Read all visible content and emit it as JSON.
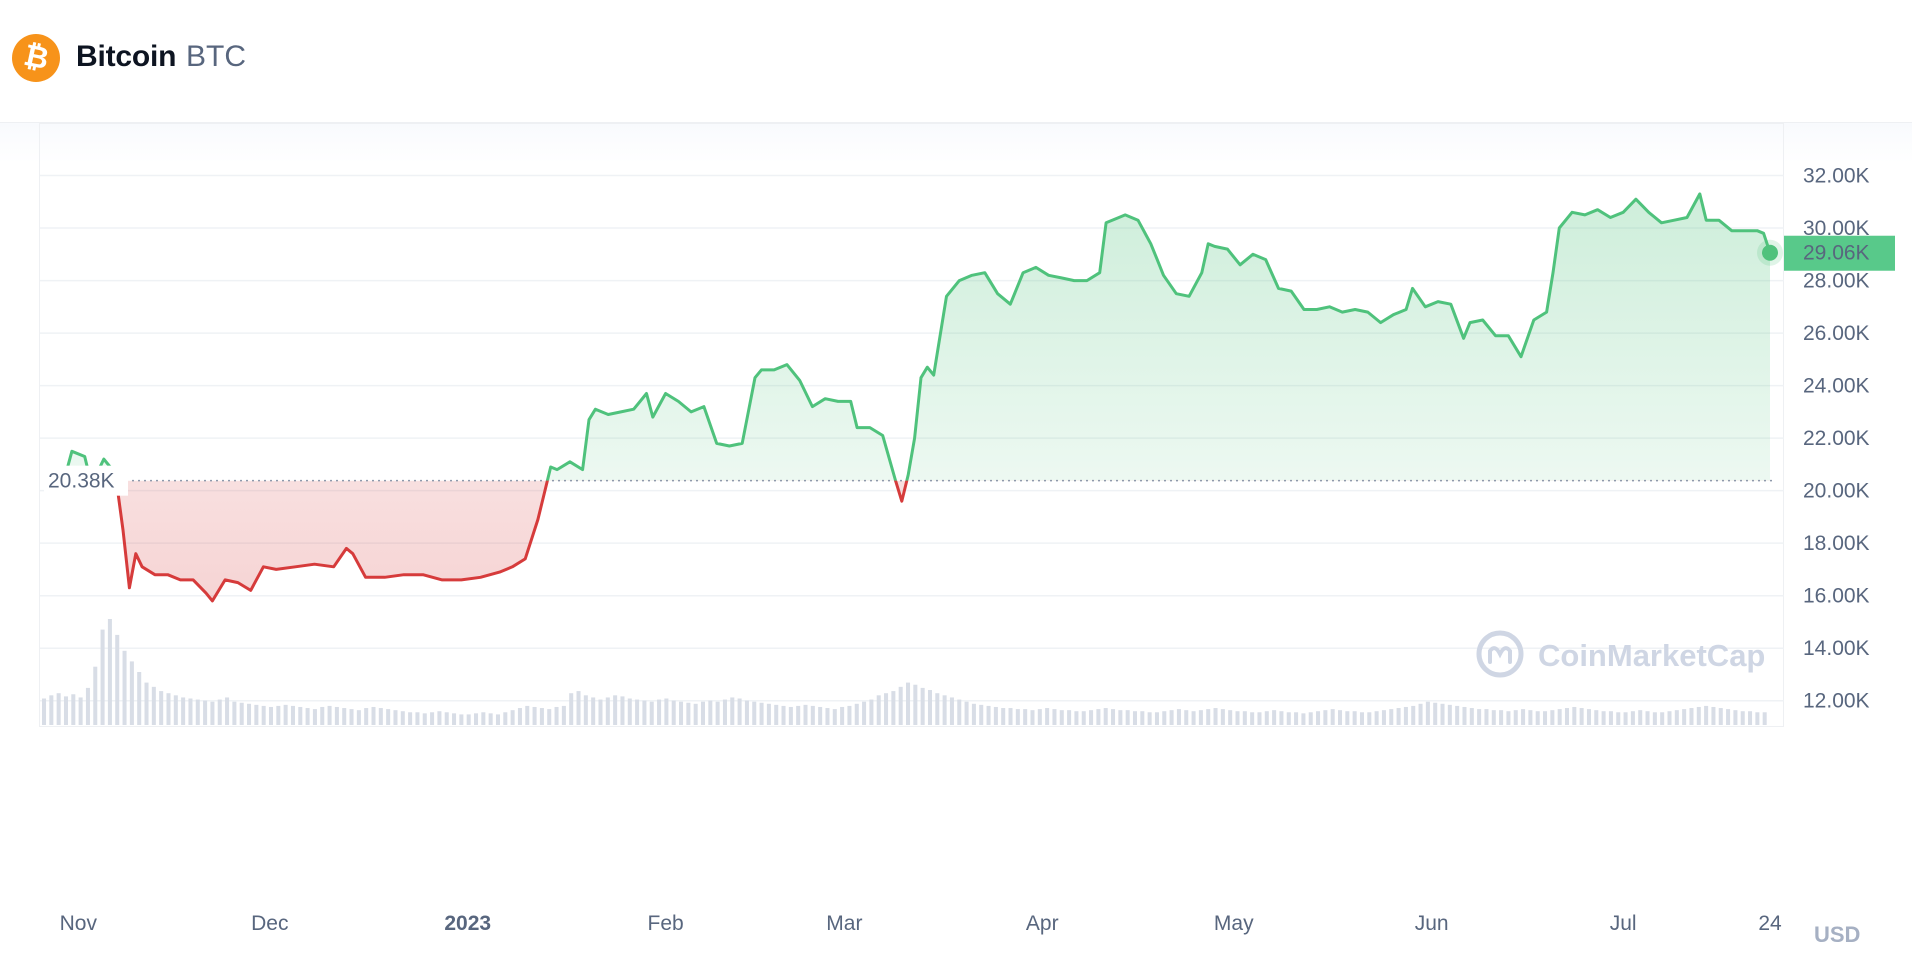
{
  "header": {
    "coin_name": "Bitcoin",
    "coin_symbol": "BTC",
    "logo_icon": "bitcoin-icon",
    "logo_glyph": "₿"
  },
  "watermark": {
    "text": "CoinMarketCap",
    "icon": "coinmarketcap-logo-icon"
  },
  "colors": {
    "up": "#16c784",
    "up_line": "#4fc27c",
    "down": "#d63b3b",
    "badge": "#58c98a",
    "grid": "#eff2f5",
    "volume": "#cfd6e4"
  },
  "chart_data": {
    "type": "area",
    "title": "",
    "currency_label": "USD",
    "ylim": [
      11000,
      34000
    ],
    "y_ticks": [
      12000,
      14000,
      16000,
      18000,
      20000,
      22000,
      24000,
      26000,
      28000,
      30000,
      32000
    ],
    "y_tick_labels": [
      "12.00K",
      "14.00K",
      "16.00K",
      "18.00K",
      "20.00K",
      "22.00K",
      "24.00K",
      "26.00K",
      "28.00K",
      "30.00K",
      "32.00K"
    ],
    "x_range": [
      "2022-10-26",
      "2023-07-24"
    ],
    "x_ticks": [
      {
        "date": "2022-11-01",
        "label": "Nov",
        "bold": false
      },
      {
        "date": "2022-12-01",
        "label": "Dec",
        "bold": false
      },
      {
        "date": "2023-01-01",
        "label": "2023",
        "bold": true
      },
      {
        "date": "2023-02-01",
        "label": "Feb",
        "bold": false
      },
      {
        "date": "2023-03-01",
        "label": "Mar",
        "bold": false
      },
      {
        "date": "2023-04-01",
        "label": "Apr",
        "bold": false
      },
      {
        "date": "2023-05-01",
        "label": "May",
        "bold": false
      },
      {
        "date": "2023-06-01",
        "label": "Jun",
        "bold": false
      },
      {
        "date": "2023-07-01",
        "label": "Jul",
        "bold": false
      },
      {
        "date": "2023-07-24",
        "label": "24",
        "bold": false
      }
    ],
    "baseline": {
      "value": 20380,
      "label": "20.38K"
    },
    "current": {
      "value": 29060,
      "label": "29.06K"
    },
    "series": [
      {
        "points": [
          [
            "2022-10-30",
            20600
          ],
          [
            "2022-10-31",
            21500
          ],
          [
            "2022-11-02",
            21300
          ],
          [
            "2022-11-03",
            20300
          ],
          [
            "2022-11-04",
            20700
          ],
          [
            "2022-11-05",
            21200
          ],
          [
            "2022-11-06",
            20900
          ],
          [
            "2022-11-07",
            20300
          ],
          [
            "2022-11-08",
            18500
          ],
          [
            "2022-11-09",
            16300
          ],
          [
            "2022-11-10",
            17600
          ],
          [
            "2022-11-11",
            17100
          ],
          [
            "2022-11-13",
            16800
          ],
          [
            "2022-11-15",
            16800
          ],
          [
            "2022-11-17",
            16600
          ],
          [
            "2022-11-19",
            16600
          ],
          [
            "2022-11-21",
            16100
          ],
          [
            "2022-11-22",
            15800
          ],
          [
            "2022-11-24",
            16600
          ],
          [
            "2022-11-26",
            16500
          ],
          [
            "2022-11-28",
            16200
          ],
          [
            "2022-11-30",
            17100
          ],
          [
            "2022-12-02",
            17000
          ],
          [
            "2022-12-05",
            17100
          ],
          [
            "2022-12-08",
            17200
          ],
          [
            "2022-12-11",
            17100
          ],
          [
            "2022-12-13",
            17800
          ],
          [
            "2022-12-14",
            17600
          ],
          [
            "2022-12-16",
            16700
          ],
          [
            "2022-12-19",
            16700
          ],
          [
            "2022-12-22",
            16800
          ],
          [
            "2022-12-25",
            16800
          ],
          [
            "2022-12-28",
            16600
          ],
          [
            "2022-12-31",
            16600
          ],
          [
            "2023-01-03",
            16700
          ],
          [
            "2023-01-06",
            16900
          ],
          [
            "2023-01-08",
            17100
          ],
          [
            "2023-01-10",
            17400
          ],
          [
            "2023-01-12",
            18900
          ],
          [
            "2023-01-13",
            19900
          ],
          [
            "2023-01-14",
            20900
          ],
          [
            "2023-01-15",
            20800
          ],
          [
            "2023-01-17",
            21100
          ],
          [
            "2023-01-19",
            20800
          ],
          [
            "2023-01-20",
            22700
          ],
          [
            "2023-01-21",
            23100
          ],
          [
            "2023-01-23",
            22900
          ],
          [
            "2023-01-25",
            23000
          ],
          [
            "2023-01-27",
            23100
          ],
          [
            "2023-01-29",
            23700
          ],
          [
            "2023-01-30",
            22800
          ],
          [
            "2023-02-01",
            23700
          ],
          [
            "2023-02-03",
            23400
          ],
          [
            "2023-02-05",
            23000
          ],
          [
            "2023-02-07",
            23200
          ],
          [
            "2023-02-09",
            21800
          ],
          [
            "2023-02-11",
            21700
          ],
          [
            "2023-02-13",
            21800
          ],
          [
            "2023-02-15",
            24300
          ],
          [
            "2023-02-16",
            24600
          ],
          [
            "2023-02-18",
            24600
          ],
          [
            "2023-02-20",
            24800
          ],
          [
            "2023-02-22",
            24200
          ],
          [
            "2023-02-24",
            23200
          ],
          [
            "2023-02-26",
            23500
          ],
          [
            "2023-02-28",
            23400
          ],
          [
            "2023-03-02",
            23400
          ],
          [
            "2023-03-03",
            22400
          ],
          [
            "2023-03-05",
            22400
          ],
          [
            "2023-03-07",
            22100
          ],
          [
            "2023-03-09",
            20400
          ],
          [
            "2023-03-10",
            19600
          ],
          [
            "2023-03-11",
            20600
          ],
          [
            "2023-03-12",
            22000
          ],
          [
            "2023-03-13",
            24300
          ],
          [
            "2023-03-14",
            24700
          ],
          [
            "2023-03-15",
            24400
          ],
          [
            "2023-03-17",
            27400
          ],
          [
            "2023-03-19",
            28000
          ],
          [
            "2023-03-21",
            28200
          ],
          [
            "2023-03-23",
            28300
          ],
          [
            "2023-03-25",
            27500
          ],
          [
            "2023-03-27",
            27100
          ],
          [
            "2023-03-29",
            28300
          ],
          [
            "2023-03-31",
            28500
          ],
          [
            "2023-04-02",
            28200
          ],
          [
            "2023-04-04",
            28100
          ],
          [
            "2023-04-06",
            28000
          ],
          [
            "2023-04-08",
            28000
          ],
          [
            "2023-04-10",
            28300
          ],
          [
            "2023-04-11",
            30200
          ],
          [
            "2023-04-13",
            30400
          ],
          [
            "2023-04-14",
            30500
          ],
          [
            "2023-04-16",
            30300
          ],
          [
            "2023-04-18",
            29400
          ],
          [
            "2023-04-19",
            28800
          ],
          [
            "2023-04-20",
            28200
          ],
          [
            "2023-04-22",
            27500
          ],
          [
            "2023-04-24",
            27400
          ],
          [
            "2023-04-26",
            28300
          ],
          [
            "2023-04-27",
            29400
          ],
          [
            "2023-04-28",
            29300
          ],
          [
            "2023-04-30",
            29200
          ],
          [
            "2023-05-02",
            28600
          ],
          [
            "2023-05-04",
            29000
          ],
          [
            "2023-05-06",
            28800
          ],
          [
            "2023-05-08",
            27700
          ],
          [
            "2023-05-10",
            27600
          ],
          [
            "2023-05-12",
            26900
          ],
          [
            "2023-05-14",
            26900
          ],
          [
            "2023-05-16",
            27000
          ],
          [
            "2023-05-18",
            26800
          ],
          [
            "2023-05-20",
            26900
          ],
          [
            "2023-05-22",
            26800
          ],
          [
            "2023-05-24",
            26400
          ],
          [
            "2023-05-26",
            26700
          ],
          [
            "2023-05-28",
            26900
          ],
          [
            "2023-05-29",
            27700
          ],
          [
            "2023-05-31",
            27000
          ],
          [
            "2023-06-02",
            27200
          ],
          [
            "2023-06-04",
            27100
          ],
          [
            "2023-06-06",
            25800
          ],
          [
            "2023-06-07",
            26400
          ],
          [
            "2023-06-09",
            26500
          ],
          [
            "2023-06-11",
            25900
          ],
          [
            "2023-06-13",
            25900
          ],
          [
            "2023-06-15",
            25100
          ],
          [
            "2023-06-17",
            26500
          ],
          [
            "2023-06-19",
            26800
          ],
          [
            "2023-06-20",
            28300
          ],
          [
            "2023-06-21",
            30000
          ],
          [
            "2023-06-23",
            30600
          ],
          [
            "2023-06-25",
            30500
          ],
          [
            "2023-06-27",
            30700
          ],
          [
            "2023-06-29",
            30400
          ],
          [
            "2023-07-01",
            30600
          ],
          [
            "2023-07-03",
            31100
          ],
          [
            "2023-07-05",
            30600
          ],
          [
            "2023-07-07",
            30200
          ],
          [
            "2023-07-09",
            30300
          ],
          [
            "2023-07-11",
            30400
          ],
          [
            "2023-07-13",
            31300
          ],
          [
            "2023-07-14",
            30300
          ],
          [
            "2023-07-16",
            30300
          ],
          [
            "2023-07-18",
            29900
          ],
          [
            "2023-07-20",
            29900
          ],
          [
            "2023-07-22",
            29900
          ],
          [
            "2023-07-23",
            29800
          ],
          [
            "2023-07-24",
            29060
          ]
        ]
      }
    ],
    "volume": {
      "x_range": [
        "2022-10-26",
        "2023-07-24"
      ],
      "values": [
        25,
        28,
        30,
        27,
        29,
        26,
        35,
        55,
        90,
        100,
        85,
        70,
        60,
        50,
        40,
        36,
        32,
        30,
        28,
        26,
        25,
        24,
        23,
        22,
        24,
        26,
        22,
        21,
        20,
        19,
        18,
        17,
        18,
        19,
        18,
        17,
        16,
        15,
        17,
        18,
        17,
        16,
        15,
        14,
        16,
        17,
        16,
        15,
        14,
        13,
        12,
        12,
        11,
        12,
        13,
        12,
        11,
        10,
        10,
        11,
        12,
        11,
        10,
        12,
        14,
        16,
        18,
        17,
        16,
        15,
        17,
        18,
        30,
        32,
        28,
        26,
        24,
        26,
        28,
        27,
        25,
        24,
        23,
        22,
        24,
        25,
        23,
        22,
        21,
        20,
        22,
        23,
        22,
        24,
        26,
        25,
        23,
        22,
        21,
        20,
        19,
        18,
        17,
        18,
        19,
        18,
        17,
        16,
        15,
        17,
        18,
        20,
        22,
        24,
        28,
        30,
        32,
        36,
        40,
        38,
        35,
        33,
        30,
        28,
        26,
        24,
        22,
        20,
        19,
        18,
        17,
        16,
        16,
        15,
        15,
        14,
        15,
        16,
        15,
        14,
        14,
        13,
        13,
        14,
        15,
        16,
        15,
        14,
        14,
        13,
        13,
        12,
        12,
        13,
        14,
        15,
        14,
        13,
        14,
        15,
        16,
        15,
        14,
        13,
        13,
        12,
        12,
        13,
        14,
        13,
        12,
        12,
        11,
        12,
        13,
        14,
        15,
        14,
        13,
        13,
        12,
        12,
        13,
        14,
        15,
        16,
        17,
        18,
        20,
        22,
        21,
        20,
        19,
        18,
        17,
        16,
        15,
        15,
        14,
        14,
        13,
        14,
        15,
        14,
        13,
        13,
        14,
        15,
        16,
        17,
        16,
        15,
        14,
        13,
        13,
        12,
        12,
        13,
        14,
        13,
        12,
        12,
        13,
        14,
        15,
        16,
        17,
        18,
        17,
        16,
        15,
        14,
        13,
        13,
        12,
        12
      ]
    }
  }
}
